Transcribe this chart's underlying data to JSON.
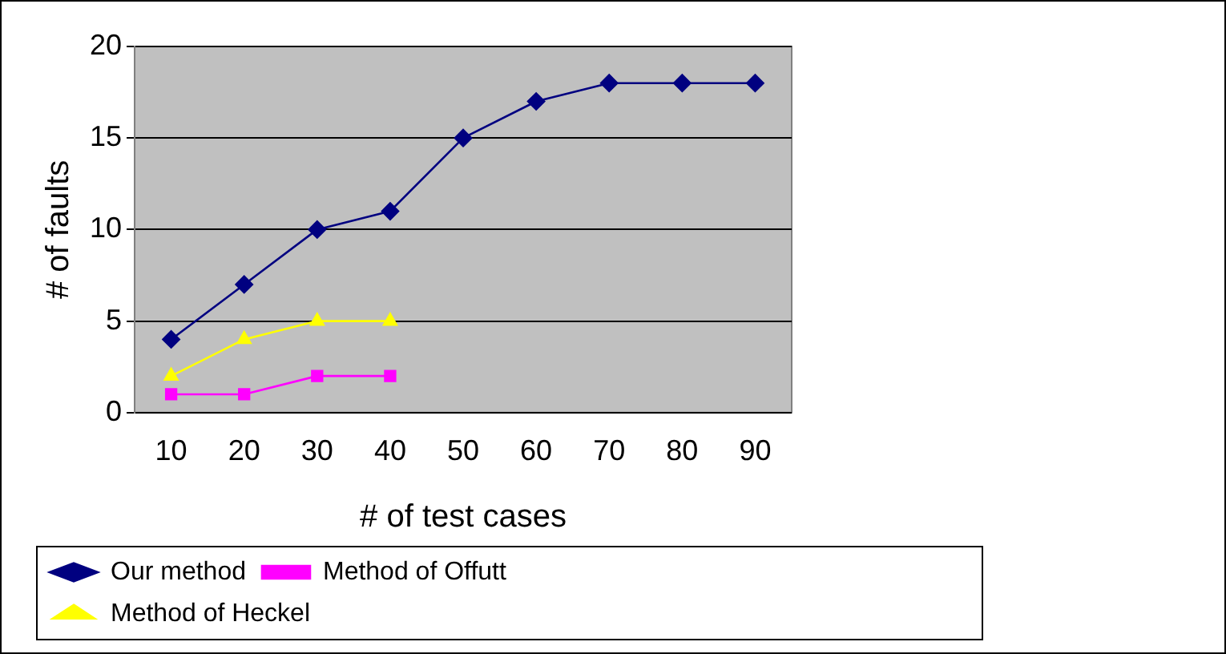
{
  "chart_data": {
    "type": "line",
    "xlabel": "# of test cases",
    "ylabel": "# of faults",
    "categories": [
      "10",
      "20",
      "30",
      "40",
      "50",
      "60",
      "70",
      "80",
      "90"
    ],
    "ylim": [
      0,
      20
    ],
    "yticks": [
      0,
      5,
      10,
      15,
      20
    ],
    "grid": "y",
    "legend": "bottom left",
    "series": [
      {
        "name": "Our method",
        "color": "#000080",
        "marker": "diamond",
        "values": [
          4,
          7,
          10,
          11,
          15,
          17,
          18,
          18,
          18
        ]
      },
      {
        "name": "Method of Offutt",
        "color": "#ff00ff",
        "marker": "square",
        "values": [
          1,
          1,
          2,
          2,
          null,
          null,
          null,
          null,
          null
        ]
      },
      {
        "name": "Method of Heckel",
        "color": "#ffff00",
        "marker": "triangle",
        "values": [
          2,
          4,
          5,
          5,
          null,
          null,
          null,
          null,
          null
        ]
      }
    ]
  }
}
